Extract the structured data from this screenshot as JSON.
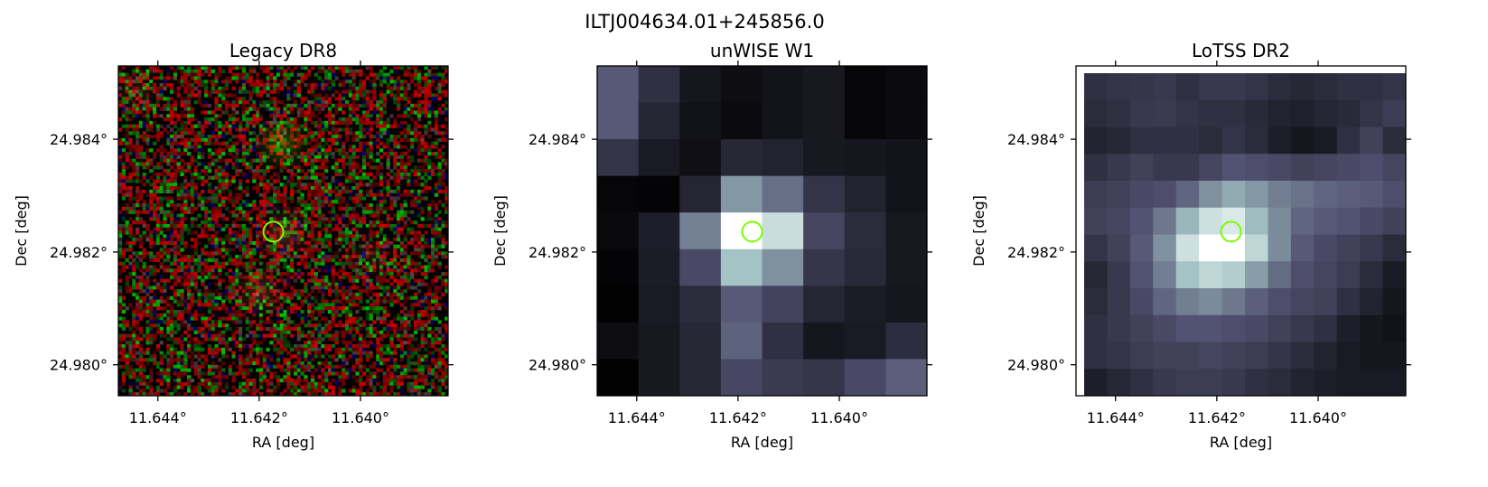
{
  "figure": {
    "suptitle": "ILTJ004634.01+245856.0"
  },
  "colors": {
    "marker": "#7cfc00",
    "axis": "#000000",
    "background": "#ffffff"
  },
  "chart_data": [
    {
      "type": "heatmap",
      "title": "Legacy DR8",
      "xlabel": "RA [deg]",
      "ylabel": "Dec [deg]",
      "x_ticks": [
        11.644,
        11.642,
        11.64
      ],
      "x_tick_labels": [
        "11.644°",
        "11.642°",
        "11.640°"
      ],
      "y_ticks": [
        24.984,
        24.982,
        24.98
      ],
      "y_tick_labels": [
        "24.984°",
        "24.982°",
        "24.980°"
      ],
      "x_direction": "decreasing",
      "xlim": [
        11.64478,
        11.63827
      ],
      "ylim": [
        24.97945,
        24.9853
      ],
      "source_marker": {
        "ra": 11.64172,
        "dec": 24.98236
      },
      "image": "rgb noise with faint red/green sources",
      "grid": false
    },
    {
      "type": "heatmap",
      "title": "unWISE W1",
      "xlabel": "RA [deg]",
      "ylabel": "Dec [deg]",
      "x_ticks": [
        11.644,
        11.642,
        11.64
      ],
      "x_tick_labels": [
        "11.644°",
        "11.642°",
        "11.640°"
      ],
      "y_ticks": [
        24.984,
        24.982,
        24.98
      ],
      "y_tick_labels": [
        "24.984°",
        "24.982°",
        "24.980°"
      ],
      "x_direction": "decreasing",
      "xlim": [
        11.64478,
        11.63827
      ],
      "ylim": [
        24.97945,
        24.9853
      ],
      "source_marker": {
        "ra": 11.64172,
        "dec": 24.98236
      },
      "colormap": "bone",
      "pixels": [
        [
          0.4,
          0.22,
          0.1,
          0.06,
          0.09,
          0.11,
          0.03,
          0.05
        ],
        [
          0.4,
          0.17,
          0.08,
          0.05,
          0.09,
          0.11,
          0.03,
          0.05
        ],
        [
          0.24,
          0.12,
          0.07,
          0.18,
          0.16,
          0.11,
          0.1,
          0.09
        ],
        [
          0.03,
          0.02,
          0.17,
          0.6,
          0.47,
          0.24,
          0.16,
          0.09
        ],
        [
          0.04,
          0.14,
          0.53,
          1.0,
          0.85,
          0.32,
          0.2,
          0.11
        ],
        [
          0.02,
          0.13,
          0.34,
          0.74,
          0.58,
          0.25,
          0.19,
          0.11
        ],
        [
          0.01,
          0.12,
          0.2,
          0.4,
          0.31,
          0.17,
          0.13,
          0.1
        ],
        [
          0.06,
          0.11,
          0.18,
          0.43,
          0.22,
          0.1,
          0.12,
          0.21
        ],
        [
          0.01,
          0.11,
          0.18,
          0.33,
          0.27,
          0.25,
          0.34,
          0.42
        ]
      ],
      "grid": false
    },
    {
      "type": "heatmap",
      "title": "LoTSS DR2",
      "xlabel": "RA [deg]",
      "ylabel": "Dec [deg]",
      "x_ticks": [
        11.644,
        11.642,
        11.64
      ],
      "x_tick_labels": [
        "11.644°",
        "11.642°",
        "11.640°"
      ],
      "y_ticks": [
        24.984,
        24.982,
        24.98
      ],
      "y_tick_labels": [
        "24.984°",
        "24.982°",
        "24.980°"
      ],
      "x_direction": "decreasing",
      "xlim": [
        11.64478,
        11.63827
      ],
      "ylim": [
        24.97945,
        24.9853
      ],
      "source_marker": {
        "ra": 11.64172,
        "dec": 24.98236
      },
      "colormap": "bone",
      "pixels": [
        [
          0.22,
          0.24,
          0.25,
          0.26,
          0.22,
          0.26,
          0.26,
          0.24,
          0.2,
          0.18,
          0.2,
          0.22,
          0.22,
          0.24
        ],
        [
          0.2,
          0.22,
          0.26,
          0.27,
          0.24,
          0.22,
          0.22,
          0.19,
          0.16,
          0.15,
          0.17,
          0.19,
          0.24,
          0.28
        ],
        [
          0.16,
          0.18,
          0.22,
          0.22,
          0.22,
          0.2,
          0.24,
          0.2,
          0.14,
          0.1,
          0.12,
          0.22,
          0.3,
          0.2
        ],
        [
          0.22,
          0.26,
          0.3,
          0.26,
          0.26,
          0.32,
          0.38,
          0.36,
          0.34,
          0.3,
          0.32,
          0.34,
          0.36,
          0.32
        ],
        [
          0.28,
          0.3,
          0.34,
          0.36,
          0.44,
          0.58,
          0.66,
          0.6,
          0.52,
          0.48,
          0.44,
          0.42,
          0.4,
          0.36
        ],
        [
          0.3,
          0.32,
          0.38,
          0.5,
          0.7,
          0.86,
          0.9,
          0.72,
          0.56,
          0.44,
          0.4,
          0.38,
          0.34,
          0.3
        ],
        [
          0.24,
          0.3,
          0.4,
          0.58,
          0.86,
          1.0,
          1.0,
          0.82,
          0.56,
          0.4,
          0.34,
          0.3,
          0.26,
          0.2
        ],
        [
          0.18,
          0.26,
          0.38,
          0.52,
          0.74,
          0.82,
          0.78,
          0.62,
          0.46,
          0.36,
          0.32,
          0.28,
          0.2,
          0.12
        ],
        [
          0.2,
          0.26,
          0.34,
          0.44,
          0.52,
          0.56,
          0.5,
          0.42,
          0.36,
          0.32,
          0.3,
          0.22,
          0.16,
          0.1
        ],
        [
          0.22,
          0.26,
          0.3,
          0.34,
          0.38,
          0.38,
          0.36,
          0.34,
          0.3,
          0.26,
          0.22,
          0.14,
          0.1,
          0.08
        ],
        [
          0.22,
          0.24,
          0.28,
          0.3,
          0.3,
          0.32,
          0.3,
          0.28,
          0.24,
          0.2,
          0.16,
          0.12,
          0.1,
          0.1
        ],
        [
          0.14,
          0.18,
          0.22,
          0.26,
          0.28,
          0.28,
          0.26,
          0.22,
          0.2,
          0.16,
          0.14,
          0.12,
          0.12,
          0.12
        ]
      ],
      "grid": false
    }
  ]
}
